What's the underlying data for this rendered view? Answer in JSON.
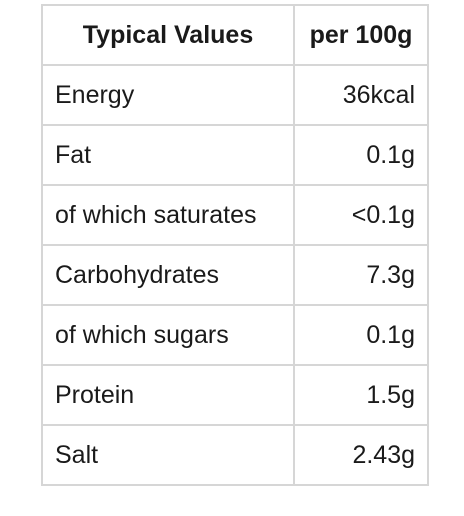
{
  "table": {
    "headers": [
      "Typical Values",
      "per 100g"
    ],
    "rows": [
      [
        "Energy",
        "36kcal"
      ],
      [
        "Fat",
        "0.1g"
      ],
      [
        "of which saturates",
        "<0.1g"
      ],
      [
        "Carbohydrates",
        "7.3g"
      ],
      [
        "of which sugars",
        "0.1g"
      ],
      [
        "Protein",
        "1.5g"
      ],
      [
        "Salt",
        "2.43g"
      ]
    ]
  }
}
